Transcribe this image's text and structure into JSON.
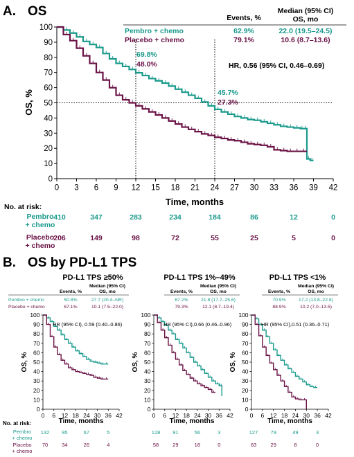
{
  "colors": {
    "pembro": "#1a9a8c",
    "placebo": "#6a1245",
    "text": "#000000",
    "axis": "#000000"
  },
  "panel_a": {
    "label": "A.",
    "title": "OS",
    "table": {
      "col1_header": "Events, %",
      "col2_header_line1": "Median (95% CI)",
      "col2_header_line2": "OS, mo",
      "rows": [
        {
          "name": "Pembro + chemo",
          "events": "62.9%",
          "median": "22.0 (19.5–24.5)",
          "color": "pembro"
        },
        {
          "name": "Placebo + chemo",
          "events": "79.1%",
          "median": "10.6 (8.7–13.6)",
          "color": "placebo"
        }
      ]
    },
    "hr_text": "HR, 0.56 (95% CI, 0.46–0.69)",
    "annotations": [
      {
        "text": "69.8%",
        "color": "pembro"
      },
      {
        "text": "48.0%",
        "color": "placebo"
      },
      {
        "text": "45.7%",
        "color": "pembro"
      },
      {
        "text": "27.3%",
        "color": "placebo"
      }
    ],
    "ylabel": "OS, %",
    "xlabel": "Time, months",
    "at_risk_title": "No. at risk:",
    "at_risk": [
      {
        "label_line1": "Pembro",
        "label_line2": "+ chemo",
        "values": [
          "410",
          "347",
          "283",
          "234",
          "184",
          "86",
          "12",
          "0"
        ],
        "color": "pembro"
      },
      {
        "label_line1": "Placebo",
        "label_line2": "+ chemo",
        "values": [
          "206",
          "149",
          "98",
          "72",
          "55",
          "25",
          "5",
          "0"
        ],
        "color": "placebo"
      }
    ]
  },
  "panel_b": {
    "label": "B.",
    "title": "OS by PD-L1 TPS",
    "col1_header": "Events, %",
    "col2_header_line1": "Median (95% CI)",
    "col2_header_line2": "OS, mo",
    "xlabel": "Time, months",
    "ylabel": "OS, %",
    "at_risk_title": "No. at risk:",
    "at_risk_labels": [
      {
        "line1": "Pembro",
        "line2": "+ chemo",
        "color": "pembro"
      },
      {
        "line1": "Placebo",
        "line2": "+ chemo",
        "color": "placebo"
      }
    ],
    "subpanels": [
      {
        "title": "PD-L1 TPS ≥50%",
        "rows": [
          {
            "name": "Pembro + chemo",
            "events": "50.8%",
            "median": "27.7 (20.4–NR)",
            "color": "pembro"
          },
          {
            "name": "Placebo + chemo",
            "events": "67.1%",
            "median": "10.1 (7.5–22.0)",
            "color": "placebo"
          }
        ],
        "hr_text": "HR (95% CI), 0.59 (0.40–0.86)",
        "at_risk": [
          [
            "132",
            "95",
            "67",
            "5"
          ],
          [
            "70",
            "34",
            "26",
            "4"
          ]
        ]
      },
      {
        "title": "PD-L1 TPS 1%–49%",
        "rows": [
          {
            "name": "",
            "events": "67.2%",
            "median": "21.8 (17.7–25.6)",
            "color": "pembro"
          },
          {
            "name": "",
            "events": "79.3%",
            "median": "12.1 (8.7–19.4)",
            "color": "placebo"
          }
        ],
        "hr_text": "HR (95% CI),0.66 (0.46–0.96)",
        "at_risk": [
          [
            "128",
            "91",
            "56",
            "3"
          ],
          [
            "58",
            "29",
            "18",
            "0"
          ]
        ]
      },
      {
        "title": "PD-L1 TPS <1%",
        "rows": [
          {
            "name": "",
            "events": "70.9%",
            "median": "17.2 (13.8–22.8)",
            "color": "pembro"
          },
          {
            "name": "",
            "events": "88.9%",
            "median": "10.2 (7.0–13.5)",
            "color": "placebo"
          }
        ],
        "hr_text": "HR (95% CI),0.51 (0.36–0.71)",
        "at_risk": [
          [
            "127",
            "79",
            "49",
            "3"
          ],
          [
            "63",
            "29",
            "8",
            "0"
          ]
        ]
      }
    ]
  },
  "chart_data": [
    {
      "type": "line",
      "title": "OS",
      "xlabel": "Time, months",
      "ylabel": "OS, %",
      "xlim": [
        0,
        42
      ],
      "ylim": [
        0,
        100
      ],
      "x_ticks": [
        0,
        3,
        6,
        9,
        12,
        15,
        18,
        21,
        24,
        27,
        30,
        33,
        36,
        39,
        42
      ],
      "y_ticks": [
        0,
        10,
        20,
        30,
        40,
        50,
        60,
        70,
        80,
        90,
        100
      ],
      "reference_lines": {
        "x": [
          12,
          24
        ],
        "y": [
          50
        ]
      },
      "series": [
        {
          "name": "Pembro + chemo",
          "color": "#1a9a8c",
          "x": [
            0,
            1,
            2,
            3,
            4,
            5,
            6,
            7,
            8,
            9,
            10,
            11,
            12,
            13,
            14,
            15,
            16,
            17,
            18,
            19,
            20,
            21,
            22,
            23,
            24,
            25,
            26,
            27,
            28,
            29,
            30,
            31,
            32,
            33,
            34,
            35,
            36,
            37,
            37.5,
            38,
            38.5,
            39
          ],
          "y": [
            100,
            98,
            96,
            93.5,
            90.5,
            88.5,
            86.5,
            82.5,
            79,
            76,
            74,
            72,
            69.8,
            68,
            66,
            64.5,
            63,
            61,
            59,
            57,
            55,
            53,
            50.5,
            48,
            45.7,
            44,
            42.5,
            41,
            40,
            39,
            38.5,
            37.5,
            36.5,
            35.5,
            34.5,
            34,
            33.5,
            33,
            33,
            13,
            12,
            12
          ]
        },
        {
          "name": "Placebo + chemo",
          "color": "#6a1245",
          "x": [
            0,
            1,
            2,
            3,
            4,
            5,
            6,
            7,
            8,
            9,
            10,
            11,
            12,
            13,
            14,
            15,
            16,
            17,
            18,
            19,
            20,
            21,
            22,
            23,
            24,
            25,
            26,
            27,
            28,
            29,
            30,
            31,
            32,
            33,
            34,
            35,
            36,
            37,
            38
          ],
          "y": [
            100,
            95,
            91,
            86,
            81,
            76,
            70,
            65,
            60,
            55,
            52,
            50,
            48,
            46,
            44,
            42,
            40,
            38,
            36,
            34,
            32.5,
            31,
            29.5,
            28.5,
            27.3,
            26.5,
            25.5,
            25,
            24,
            23,
            22.5,
            22,
            21,
            19,
            18.5,
            18,
            18,
            18,
            18
          ]
        }
      ]
    },
    {
      "type": "line",
      "title": "PD-L1 TPS ≥50%",
      "xlabel": "Time, months",
      "ylabel": "OS, %",
      "xlim": [
        0,
        42
      ],
      "ylim": [
        0,
        100
      ],
      "x_ticks": [
        0,
        6,
        12,
        18,
        24,
        30,
        36,
        42
      ],
      "y_ticks": [
        0,
        10,
        20,
        30,
        40,
        50,
        60,
        70,
        80,
        90,
        100
      ],
      "series": [
        {
          "name": "Pembro + chemo",
          "color": "#1a9a8c",
          "x": [
            0,
            2,
            4,
            6,
            8,
            10,
            12,
            14,
            16,
            18,
            20,
            22,
            24,
            26,
            28,
            30,
            32,
            34,
            36
          ],
          "y": [
            100,
            97,
            93,
            88,
            84,
            79,
            74,
            70,
            66,
            62,
            59,
            56,
            53,
            51,
            50,
            49,
            48,
            48,
            48
          ]
        },
        {
          "name": "Placebo + chemo",
          "color": "#6a1245",
          "x": [
            0,
            2,
            4,
            6,
            8,
            10,
            12,
            14,
            16,
            18,
            20,
            22,
            24,
            26,
            28,
            30,
            32,
            34,
            36
          ],
          "y": [
            100,
            90,
            77,
            66,
            58,
            52,
            48,
            44,
            42,
            40,
            39,
            38,
            37,
            36,
            34,
            33,
            32,
            32,
            32
          ]
        }
      ]
    },
    {
      "type": "line",
      "title": "PD-L1 TPS 1%–49%",
      "xlabel": "Time, months",
      "ylabel": "OS, %",
      "xlim": [
        0,
        42
      ],
      "ylim": [
        0,
        100
      ],
      "x_ticks": [
        0,
        6,
        12,
        18,
        24,
        30,
        36,
        42
      ],
      "y_ticks": [
        0,
        10,
        20,
        30,
        40,
        50,
        60,
        70,
        80,
        90,
        100
      ],
      "series": [
        {
          "name": "Pembro + chemo",
          "color": "#1a9a8c",
          "x": [
            0,
            2,
            4,
            6,
            8,
            10,
            12,
            14,
            16,
            18,
            20,
            22,
            24,
            26,
            28,
            30,
            32,
            34,
            36,
            37,
            37.5
          ],
          "y": [
            100,
            97,
            93,
            89,
            84,
            80,
            74,
            70,
            65,
            60,
            55,
            50,
            46,
            42,
            38,
            34,
            30,
            27,
            25,
            25,
            14
          ]
        },
        {
          "name": "Placebo + chemo",
          "color": "#6a1245",
          "x": [
            0,
            2,
            4,
            6,
            8,
            10,
            12,
            14,
            16,
            18,
            20,
            22,
            24,
            26,
            28,
            30,
            32,
            34
          ],
          "y": [
            100,
            92,
            84,
            76,
            68,
            60,
            53,
            47,
            41,
            37,
            33,
            30,
            27,
            25,
            23,
            21,
            18,
            18
          ]
        }
      ]
    },
    {
      "type": "line",
      "title": "PD-L1 TPS <1%",
      "xlabel": "Time, months",
      "ylabel": "OS, %",
      "xlim": [
        0,
        42
      ],
      "ylim": [
        0,
        100
      ],
      "x_ticks": [
        0,
        6,
        12,
        18,
        24,
        30,
        36,
        42
      ],
      "y_ticks": [
        0,
        10,
        20,
        30,
        40,
        50,
        60,
        70,
        80,
        90,
        100
      ],
      "series": [
        {
          "name": "Pembro + chemo",
          "color": "#1a9a8c",
          "x": [
            0,
            2,
            4,
            6,
            8,
            10,
            12,
            14,
            16,
            18,
            20,
            22,
            24,
            26,
            28,
            30,
            32,
            34,
            36
          ],
          "y": [
            100,
            96,
            90,
            84,
            77,
            70,
            63,
            57,
            52,
            47,
            43,
            39,
            35,
            32,
            29,
            26,
            24,
            23,
            23
          ]
        },
        {
          "name": "Placebo + chemo",
          "color": "#6a1245",
          "x": [
            0,
            2,
            4,
            6,
            8,
            10,
            12,
            14,
            16,
            18,
            20,
            22,
            24,
            26,
            28,
            30
          ],
          "y": [
            100,
            90,
            78,
            66,
            57,
            49,
            42,
            36,
            30,
            24,
            18,
            13,
            11,
            10,
            10,
            0
          ]
        }
      ]
    }
  ]
}
